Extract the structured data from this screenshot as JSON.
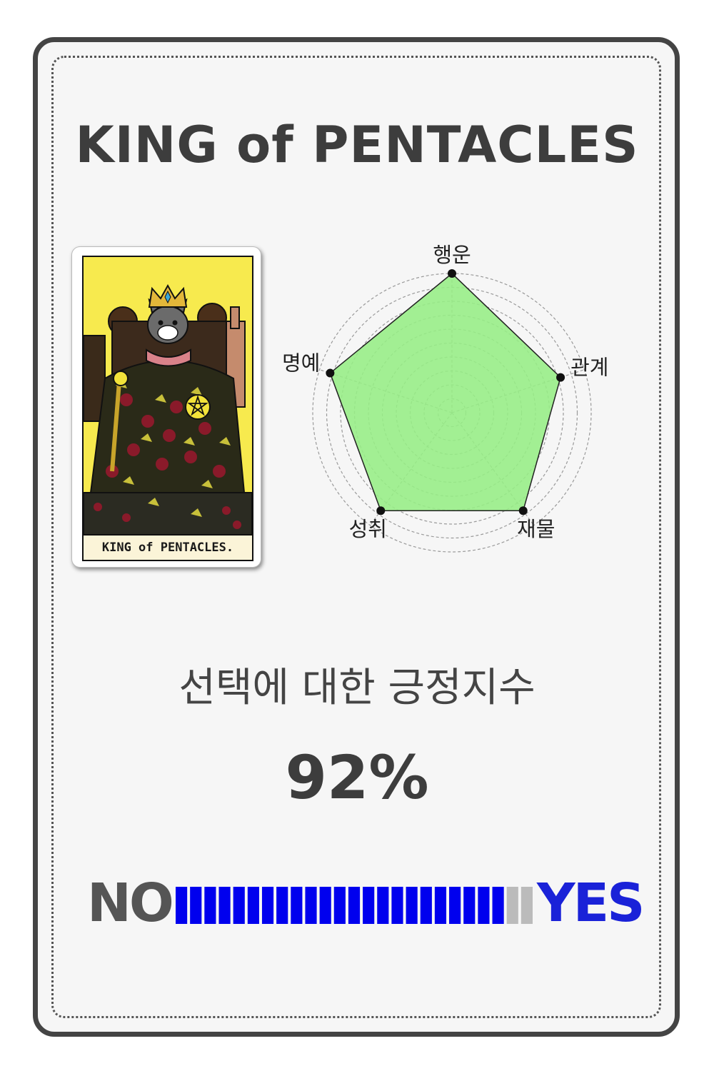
{
  "title": "KING of PENTACLES",
  "card": {
    "label": "KING of PENTACLES."
  },
  "radar": {
    "axes": [
      "행운",
      "관계",
      "재물",
      "성취",
      "명예"
    ],
    "values": [
      1.0,
      0.82,
      0.87,
      0.87,
      0.92
    ],
    "max": 1,
    "rings": 10,
    "fill_color": "#96ee85",
    "stroke_color": "#222222"
  },
  "subtitle": "선택에 대한 긍정지수",
  "score": "92%",
  "meter": {
    "no_label": "NO",
    "yes_label": "YES",
    "segments": 25,
    "fraction": 0.92,
    "on_color": "#0000ee",
    "off_color": "#bbbbbb"
  }
}
